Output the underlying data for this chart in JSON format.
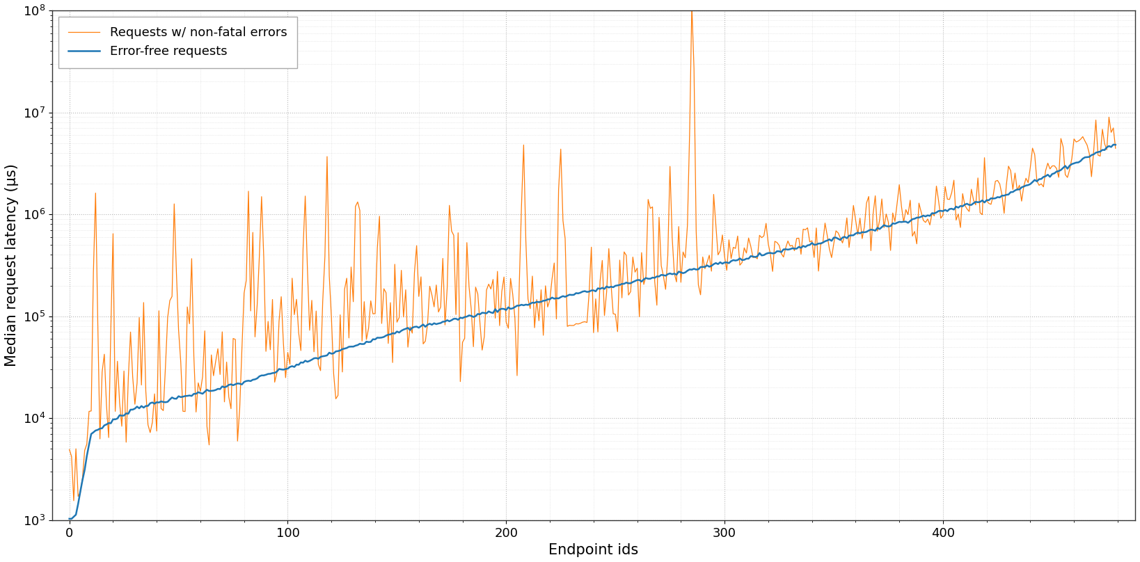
{
  "xlabel": "Endpoint ids",
  "ylabel": "Median request latency (μs)",
  "xlim": [
    -8,
    488
  ],
  "ylim_log": [
    3,
    8
  ],
  "xticks": [
    0,
    100,
    200,
    300,
    400
  ],
  "yticks_log": [
    3,
    4,
    5,
    6,
    7,
    8
  ],
  "blue_color": "#1f77b4",
  "orange_color": "#ff7f0e",
  "legend_labels": [
    "Error-free requests",
    "Requests w/ non-fatal errors"
  ],
  "background_color": "#ffffff",
  "grid_major_color": "#b0b0b0",
  "grid_minor_color": "#c8c8c8",
  "figsize": [
    16.38,
    8.08
  ],
  "dpi": 100
}
